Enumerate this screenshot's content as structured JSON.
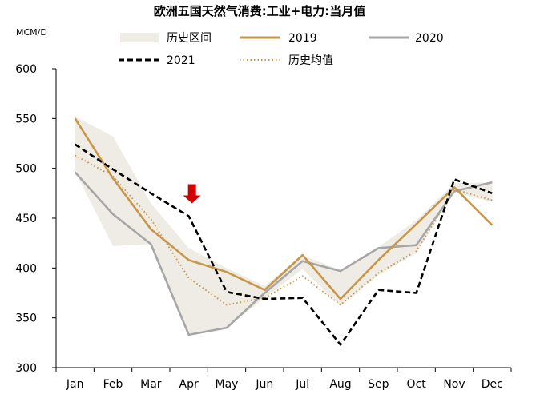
{
  "chart_data": {
    "type": "line",
    "title": "欧洲五国天然气消费:工业+电力:当月值",
    "ylabel": "MCM/D",
    "categories": [
      "Jan",
      "Feb",
      "Mar",
      "Apr",
      "May",
      "Jun",
      "Jul",
      "Aug",
      "Sep",
      "Oct",
      "Nov",
      "Dec"
    ],
    "yticks": [
      300,
      350,
      400,
      450,
      500,
      550,
      600
    ],
    "ylim": [
      300,
      600
    ],
    "grid": false,
    "legend": [
      {
        "key": "range",
        "label": "历史区间"
      },
      {
        "key": "s2019",
        "label": "2019"
      },
      {
        "key": "s2020",
        "label": "2020"
      },
      {
        "key": "s2021",
        "label": "2021"
      },
      {
        "key": "avg",
        "label": "历史均值"
      }
    ],
    "range": {
      "lower": [
        497,
        422,
        424,
        333,
        340,
        370,
        399,
        362,
        393,
        415,
        476,
        466
      ],
      "upper": [
        552,
        532,
        465,
        420,
        400,
        382,
        413,
        398,
        421,
        448,
        485,
        486
      ]
    },
    "series": [
      {
        "key": "s2019",
        "color": "#c8964b",
        "values": [
          550,
          490,
          439,
          408,
          396,
          378,
          413,
          369,
          408,
          444,
          481,
          443
        ]
      },
      {
        "key": "s2020",
        "color": "#a6a6a6",
        "values": [
          496,
          454,
          424,
          333,
          340,
          375,
          407,
          397,
          420,
          423,
          477,
          486
        ]
      },
      {
        "key": "s2021",
        "color": "#000000",
        "values": [
          524,
          499,
          475,
          452,
          376,
          369,
          370,
          323,
          378,
          375,
          489,
          475
        ]
      },
      {
        "key": "avg",
        "color": "#c8964b",
        "values": [
          513,
          492,
          449,
          390,
          363,
          370,
          392,
          363,
          395,
          417,
          479,
          468
        ]
      }
    ],
    "annotation": {
      "type": "down-arrow",
      "category": "Apr",
      "color": "#d40000"
    },
    "colors": {
      "range_fill": "#eeece4",
      "arrow": "#d40000"
    }
  }
}
